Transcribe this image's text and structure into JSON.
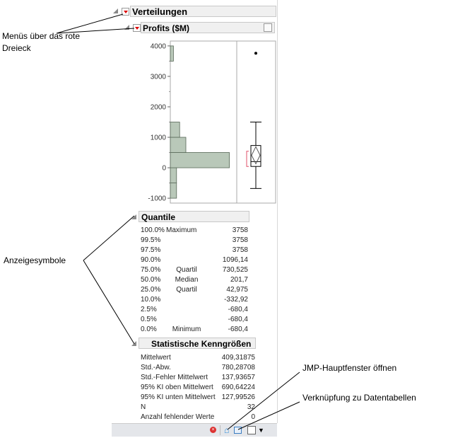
{
  "report": {
    "title": "Verteilungen",
    "variable": "Profits ($M)"
  },
  "chart_data": {
    "type": "bar",
    "orientation": "horizontal histogram with box plot",
    "bins": [
      [
        -1000,
        -500
      ],
      [
        -500,
        0
      ],
      [
        0,
        500
      ],
      [
        500,
        1000
      ],
      [
        1000,
        1500
      ],
      [
        3500,
        4000
      ]
    ],
    "counts": [
      2,
      2,
      19,
      5,
      3,
      1
    ],
    "yticks": [
      "4000",
      "3000",
      "2000",
      "1000",
      "0",
      "-1000"
    ],
    "ylim": [
      -1160,
      4160
    ],
    "boxplot": {
      "min": -680.4,
      "q1": 42.975,
      "median": 201.7,
      "q3": 730.525,
      "whisker_high": 1500,
      "outlier": 3758,
      "mean": 409.31875,
      "ci_low": 127.99526,
      "ci_high": 690.64224
    },
    "colors": {
      "bar": "#b9c8b9",
      "bracket": "#e0506a"
    }
  },
  "quantiles": {
    "title": "Quantile",
    "rows": [
      {
        "p": "100.0%",
        "label": "Maximum",
        "value": "3758"
      },
      {
        "p": "99.5%",
        "label": "",
        "value": "3758"
      },
      {
        "p": "97.5%",
        "label": "",
        "value": "3758"
      },
      {
        "p": "90.0%",
        "label": "",
        "value": "1096,14"
      },
      {
        "p": "75.0%",
        "label": "Quartil",
        "value": "730,525"
      },
      {
        "p": "50.0%",
        "label": "Median",
        "value": "201,7"
      },
      {
        "p": "25.0%",
        "label": "Quartil",
        "value": "42,975"
      },
      {
        "p": "10.0%",
        "label": "",
        "value": "-332,92"
      },
      {
        "p": "2.5%",
        "label": "",
        "value": "-680,4"
      },
      {
        "p": "0.5%",
        "label": "",
        "value": "-680,4"
      },
      {
        "p": "0.0%",
        "label": "Minimum",
        "value": "-680,4"
      }
    ]
  },
  "stats": {
    "title": "Statistische Kenngrößen",
    "rows": [
      {
        "label": "Mittelwert",
        "value": "409,31875"
      },
      {
        "label": "Std.-Abw.",
        "value": "780,28708"
      },
      {
        "label": "Std.-Fehler Mittelwert",
        "value": "137,93657"
      },
      {
        "label": "95% KI oben Mittelwert",
        "value": "690,64224"
      },
      {
        "label": "95% KI unten Mittelwert",
        "value": "127,99526"
      },
      {
        "label": "N",
        "value": "32"
      },
      {
        "label": "Anzahl fehlender Werte",
        "value": "0"
      }
    ]
  },
  "annotations": {
    "menus_line1": "Menüs über das rote",
    "menus_line2": "Dreieck",
    "display": "Anzeigesymbole",
    "home": "JMP-Hauptfenster öffnen",
    "link": "Verknüpfung zu Datentabellen"
  },
  "icons": {
    "close": "red-x-icon",
    "home": "home-icon",
    "table": "data-table-icon",
    "dropdown": "chevron-down-icon"
  }
}
